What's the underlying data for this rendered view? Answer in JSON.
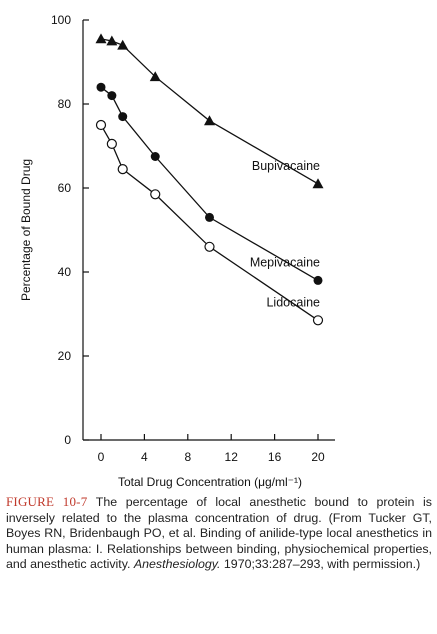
{
  "chart_data": {
    "type": "line",
    "title": "",
    "xlabel": "Total Drug Concentration (μg/ml⁻¹)",
    "ylabel": "Percentage of Bound Drug",
    "xlim": [
      0,
      20
    ],
    "ylim": [
      0,
      100
    ],
    "x_ticks": [
      0,
      4,
      8,
      12,
      16,
      20
    ],
    "y_ticks": [
      0,
      20,
      40,
      60,
      80,
      100
    ],
    "grid": false,
    "series": [
      {
        "name": "Bupivacaine",
        "marker": "filled-triangle",
        "x": [
          0,
          1,
          2,
          5,
          10,
          20
        ],
        "y": [
          95.5,
          95,
          94,
          86.5,
          76,
          61
        ]
      },
      {
        "name": "Mepivacaine",
        "marker": "filled-circle",
        "x": [
          0,
          1,
          2,
          5,
          10,
          20
        ],
        "y": [
          84,
          82,
          77,
          67.5,
          53,
          38
        ]
      },
      {
        "name": "Lidocaine",
        "marker": "open-circle",
        "x": [
          0,
          1,
          2,
          5,
          10,
          20
        ],
        "y": [
          75,
          70.5,
          64.5,
          58.5,
          46,
          28.5
        ]
      }
    ]
  },
  "caption": {
    "figure_label": "FIGURE 10-7",
    "text_before_journal": "The percentage of local anesthetic bound to protein is inversely related to the plasma concentration of drug. (From Tucker GT, Boyes RN, Bridenbaugh PO, et al. Binding of anilide-type local anesthetics in human plasma: I. Relationships between binding, physiochemical properties, and anesthetic activity.",
    "journal": "Anesthesiology.",
    "text_after_journal": "1970;33:287–293, with permission.)"
  },
  "colors": {
    "ink": "#111111",
    "figure_label": "#c0392b"
  }
}
